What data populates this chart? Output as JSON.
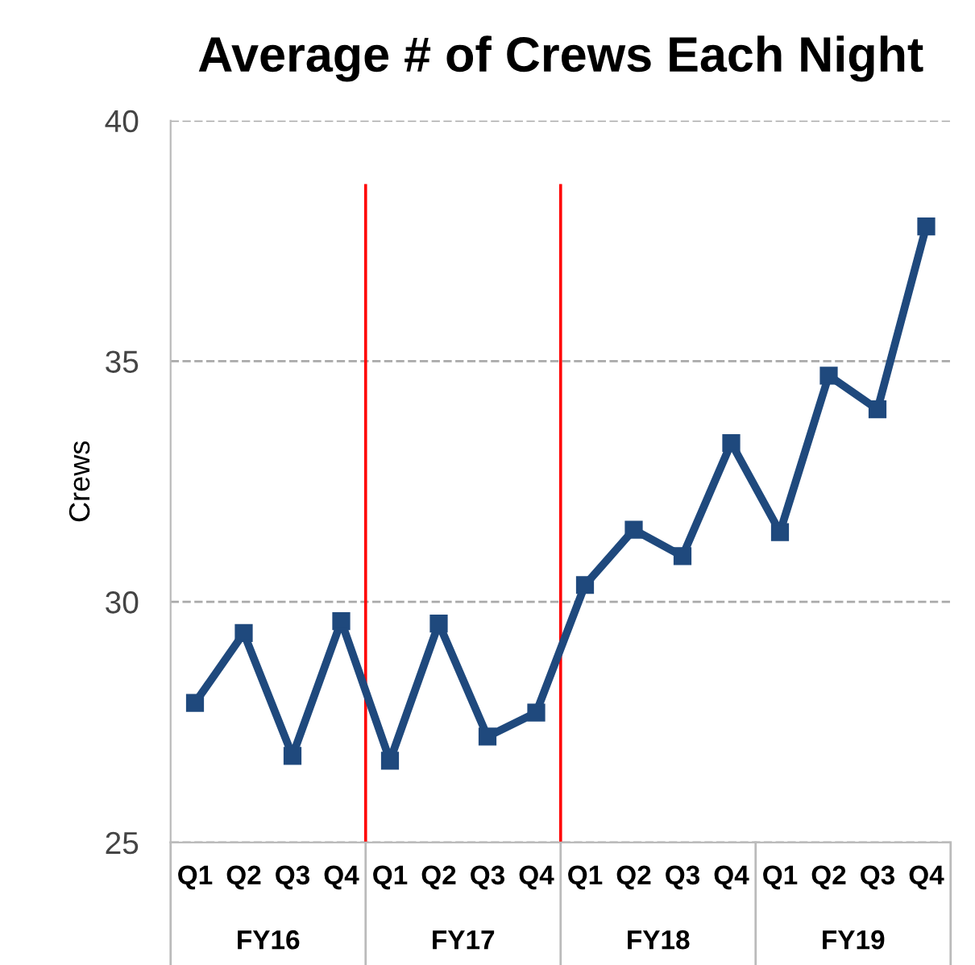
{
  "chart_data": {
    "type": "line",
    "title": "Average # of Crews Each Night",
    "ylabel": "Crews",
    "categories": [
      "Q1",
      "Q2",
      "Q3",
      "Q4",
      "Q1",
      "Q2",
      "Q3",
      "Q4",
      "Q1",
      "Q2",
      "Q3",
      "Q4",
      "Q1",
      "Q2",
      "Q3",
      "Q4"
    ],
    "series": [
      {
        "color": "#1f497d",
        "values": [
          27.9,
          29.35,
          26.8,
          29.6,
          26.7,
          29.55,
          27.2,
          27.7,
          30.35,
          31.5,
          30.95,
          33.3,
          31.45,
          34.7,
          34.0,
          37.8
        ]
      }
    ],
    "annotations": [
      "FY16",
      "FY17",
      "FY18",
      "FY19"
    ],
    "ylim": [
      25,
      40
    ],
    "yticks": [
      25,
      30,
      35,
      40
    ],
    "grid": "y",
    "marker": "square",
    "line_style": "solid",
    "legend": false
  }
}
